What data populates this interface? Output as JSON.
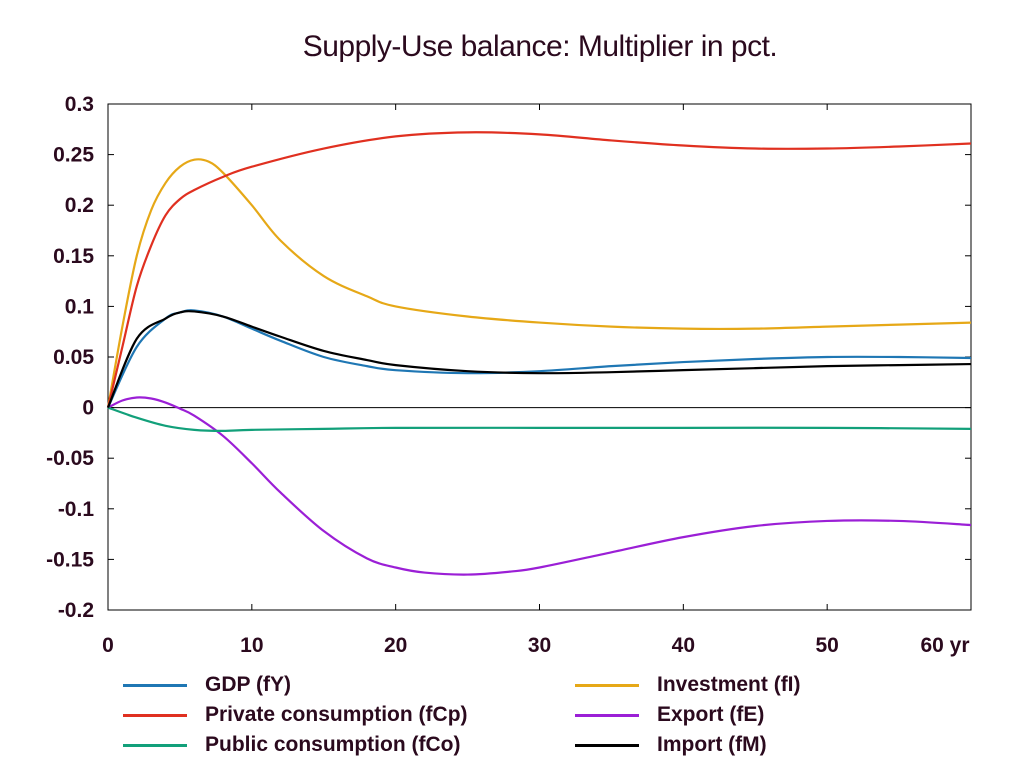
{
  "chart_data": {
    "type": "line",
    "title": "Supply-Use balance: Multiplier in pct.",
    "xlabel": "",
    "ylabel": "",
    "xlim": [
      0,
      60
    ],
    "ylim": [
      -0.2,
      0.3
    ],
    "x_ticks": [
      "0",
      "10",
      "20",
      "30",
      "40",
      "50",
      "60 yr"
    ],
    "y_ticks": [
      "0.3",
      "0.25",
      "0.2",
      "0.15",
      "0.1",
      "0.05",
      "0",
      "-0.05",
      "-0.1",
      "-0.15",
      "-0.2"
    ],
    "grid": false,
    "legend_position": "bottom",
    "series": [
      {
        "name": "GDP (fY)",
        "color": "#1f77b4",
        "points": [
          [
            0,
            0
          ],
          [
            2,
            0.06
          ],
          [
            4,
            0.088
          ],
          [
            5,
            0.094
          ],
          [
            6,
            0.096
          ],
          [
            8,
            0.09
          ],
          [
            10,
            0.078
          ],
          [
            12,
            0.066
          ],
          [
            15,
            0.05
          ],
          [
            18,
            0.041
          ],
          [
            20,
            0.037
          ],
          [
            25,
            0.034
          ],
          [
            30,
            0.036
          ],
          [
            35,
            0.041
          ],
          [
            40,
            0.045
          ],
          [
            45,
            0.048
          ],
          [
            50,
            0.05
          ],
          [
            55,
            0.05
          ],
          [
            60,
            0.049
          ]
        ]
      },
      {
        "name": "Private consumption (fCp)",
        "color": "#e03020",
        "points": [
          [
            0,
            0
          ],
          [
            1,
            0.06
          ],
          [
            2,
            0.12
          ],
          [
            3,
            0.16
          ],
          [
            4,
            0.19
          ],
          [
            5,
            0.206
          ],
          [
            6,
            0.215
          ],
          [
            8,
            0.228
          ],
          [
            10,
            0.238
          ],
          [
            15,
            0.256
          ],
          [
            20,
            0.268
          ],
          [
            25,
            0.272
          ],
          [
            30,
            0.27
          ],
          [
            35,
            0.264
          ],
          [
            40,
            0.259
          ],
          [
            45,
            0.256
          ],
          [
            50,
            0.256
          ],
          [
            55,
            0.258
          ],
          [
            60,
            0.261
          ]
        ]
      },
      {
        "name": "Public consumption (fCo)",
        "color": "#12a07a",
        "points": [
          [
            0,
            0
          ],
          [
            2,
            -0.01
          ],
          [
            4,
            -0.018
          ],
          [
            6,
            -0.022
          ],
          [
            8,
            -0.023
          ],
          [
            10,
            -0.022
          ],
          [
            15,
            -0.021
          ],
          [
            20,
            -0.02
          ],
          [
            30,
            -0.02
          ],
          [
            40,
            -0.02
          ],
          [
            50,
            -0.02
          ],
          [
            60,
            -0.021
          ]
        ]
      },
      {
        "name": "Investment (fI)",
        "color": "#e6a817",
        "points": [
          [
            0,
            0
          ],
          [
            1,
            0.08
          ],
          [
            2,
            0.15
          ],
          [
            3,
            0.195
          ],
          [
            4,
            0.222
          ],
          [
            5,
            0.238
          ],
          [
            6,
            0.245
          ],
          [
            7,
            0.243
          ],
          [
            8,
            0.232
          ],
          [
            10,
            0.2
          ],
          [
            12,
            0.165
          ],
          [
            15,
            0.13
          ],
          [
            18,
            0.11
          ],
          [
            20,
            0.1
          ],
          [
            25,
            0.09
          ],
          [
            30,
            0.084
          ],
          [
            35,
            0.08
          ],
          [
            40,
            0.078
          ],
          [
            45,
            0.078
          ],
          [
            50,
            0.08
          ],
          [
            55,
            0.082
          ],
          [
            60,
            0.084
          ]
        ]
      },
      {
        "name": "Export (fE)",
        "color": "#9b1fd6",
        "points": [
          [
            0,
            0
          ],
          [
            1,
            0.007
          ],
          [
            2,
            0.01
          ],
          [
            3,
            0.009
          ],
          [
            4,
            0.005
          ],
          [
            5,
            -0.001
          ],
          [
            6,
            -0.008
          ],
          [
            8,
            -0.028
          ],
          [
            10,
            -0.055
          ],
          [
            12,
            -0.084
          ],
          [
            15,
            -0.122
          ],
          [
            18,
            -0.149
          ],
          [
            20,
            -0.158
          ],
          [
            22,
            -0.163
          ],
          [
            25,
            -0.165
          ],
          [
            28,
            -0.162
          ],
          [
            30,
            -0.158
          ],
          [
            35,
            -0.143
          ],
          [
            40,
            -0.128
          ],
          [
            45,
            -0.117
          ],
          [
            50,
            -0.112
          ],
          [
            55,
            -0.112
          ],
          [
            60,
            -0.116
          ]
        ]
      },
      {
        "name": "Import (fM)",
        "color": "#000000",
        "points": [
          [
            0,
            0
          ],
          [
            2,
            0.068
          ],
          [
            4,
            0.088
          ],
          [
            5,
            0.094
          ],
          [
            6,
            0.095
          ],
          [
            8,
            0.09
          ],
          [
            10,
            0.08
          ],
          [
            12,
            0.07
          ],
          [
            15,
            0.056
          ],
          [
            18,
            0.047
          ],
          [
            20,
            0.042
          ],
          [
            25,
            0.036
          ],
          [
            30,
            0.034
          ],
          [
            35,
            0.035
          ],
          [
            40,
            0.037
          ],
          [
            45,
            0.039
          ],
          [
            50,
            0.041
          ],
          [
            55,
            0.042
          ],
          [
            60,
            0.043
          ]
        ]
      }
    ]
  }
}
